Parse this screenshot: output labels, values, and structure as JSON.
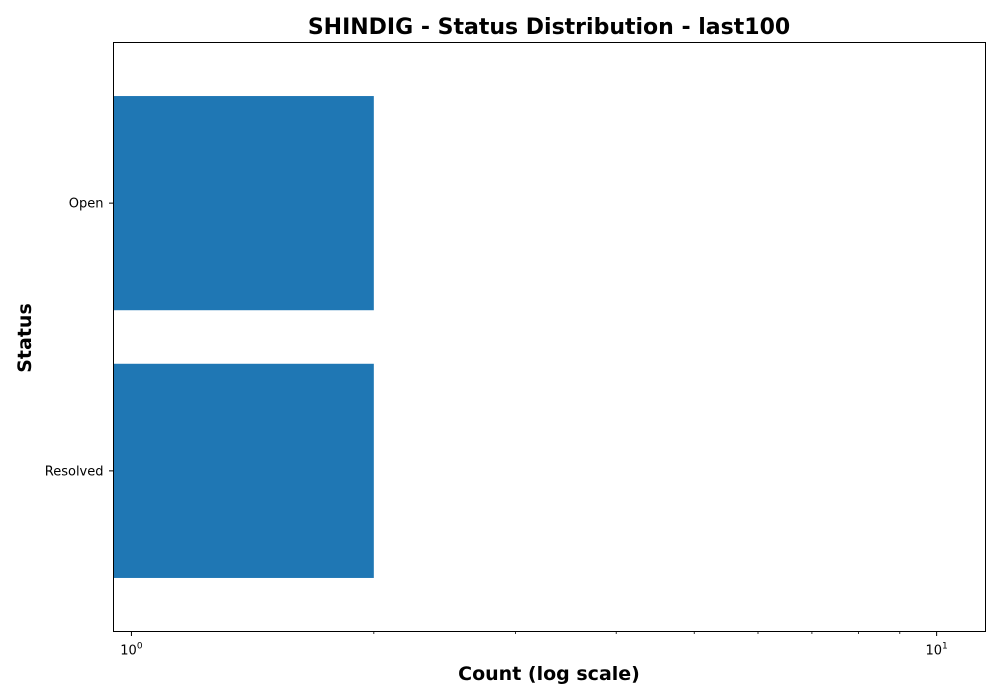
{
  "chart_data": {
    "type": "bar",
    "orientation": "horizontal",
    "title": "SHINDIG - Status Distribution - last100",
    "xlabel": "Count (log scale)",
    "ylabel": "Status",
    "x_scale": "log",
    "xlim": [
      0.95,
      11.5
    ],
    "x_major_ticks": [
      {
        "base": "10",
        "exp": "0",
        "value": 1
      },
      {
        "base": "10",
        "exp": "1",
        "value": 10
      }
    ],
    "categories": [
      "Open",
      "Resolved"
    ],
    "values": [
      2,
      2
    ],
    "bar_color": "#1f77b4",
    "grid": false,
    "legend": "none"
  }
}
